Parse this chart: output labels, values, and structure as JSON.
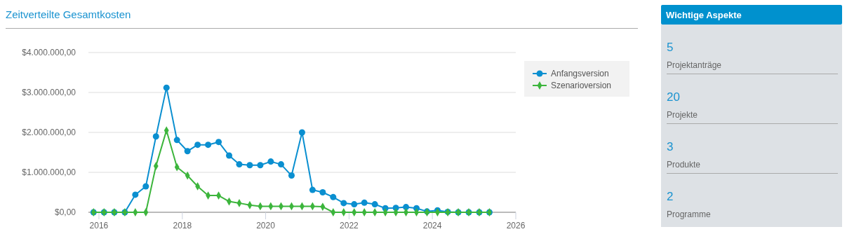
{
  "chart_data": [
    {
      "type": "line",
      "title": "Zeitverteilte Gesamtkosten",
      "x": [
        "2015-11-15",
        "2016-02-15",
        "2016-05-15",
        "2016-08-15",
        "2016-11-15",
        "2017-02-15",
        "2017-05-15",
        "2017-08-15",
        "2017-11-15",
        "2018-02-15",
        "2018-05-15",
        "2018-08-15",
        "2018-11-15",
        "2019-02-15",
        "2019-05-15",
        "2019-08-15",
        "2019-11-15",
        "2020-02-15",
        "2020-05-15",
        "2020-08-15",
        "2020-11-15",
        "2021-02-15",
        "2021-05-15",
        "2021-08-15",
        "2021-11-15",
        "2022-02-15",
        "2022-05-15",
        "2022-08-15",
        "2022-11-15",
        "2023-02-15",
        "2023-05-15",
        "2023-08-15",
        "2023-11-15",
        "2024-02-15",
        "2024-05-15",
        "2024-08-15",
        "2024-11-15",
        "2025-02-15",
        "2025-05-15"
      ],
      "series": [
        {
          "name": "Anfangsversion",
          "color": "#0a8fd0",
          "marker": "circle",
          "values": [
            0,
            0,
            0,
            0,
            440000,
            650000,
            1900000,
            3120000,
            1810000,
            1530000,
            1690000,
            1690000,
            1760000,
            1420000,
            1200000,
            1180000,
            1180000,
            1270000,
            1200000,
            920000,
            2000000,
            560000,
            500000,
            380000,
            230000,
            200000,
            240000,
            200000,
            100000,
            110000,
            130000,
            100000,
            20000,
            50000,
            10000,
            0,
            0,
            0,
            0
          ]
        },
        {
          "name": "Szenarioversion",
          "color": "#3cb53c",
          "marker": "diamond",
          "values": [
            0,
            0,
            0,
            0,
            0,
            0,
            1160000,
            2050000,
            1130000,
            920000,
            650000,
            420000,
            420000,
            270000,
            230000,
            180000,
            150000,
            150000,
            150000,
            150000,
            150000,
            150000,
            140000,
            0,
            0,
            0,
            0,
            0,
            0,
            0,
            0,
            0,
            0,
            0,
            0,
            0,
            0,
            0,
            0
          ]
        }
      ],
      "xlim": [
        "2015-10-01",
        "2026-01-01"
      ],
      "xticks": [
        "2016",
        "2018",
        "2020",
        "2022",
        "2024",
        "2026"
      ],
      "ylim": [
        0,
        4000000
      ],
      "yticks": [
        {
          "value": 0,
          "label": "$0,00"
        },
        {
          "value": 1000000,
          "label": "$1.000.000,00"
        },
        {
          "value": 2000000,
          "label": "$2.000.000,00"
        },
        {
          "value": 3000000,
          "label": "$3.000.000,00"
        },
        {
          "value": 4000000,
          "label": "$4.000.000,00"
        }
      ],
      "grid": "y",
      "legend": "top right",
      "line_style": "solid"
    },
    {
      "type": "other",
      "title": "Wichtige Aspekte",
      "categories": [
        "Projektanträge",
        "Projekte",
        "Produkte",
        "Programme"
      ],
      "values": [
        5,
        20,
        3,
        2
      ],
      "data_labels": true
    }
  ]
}
